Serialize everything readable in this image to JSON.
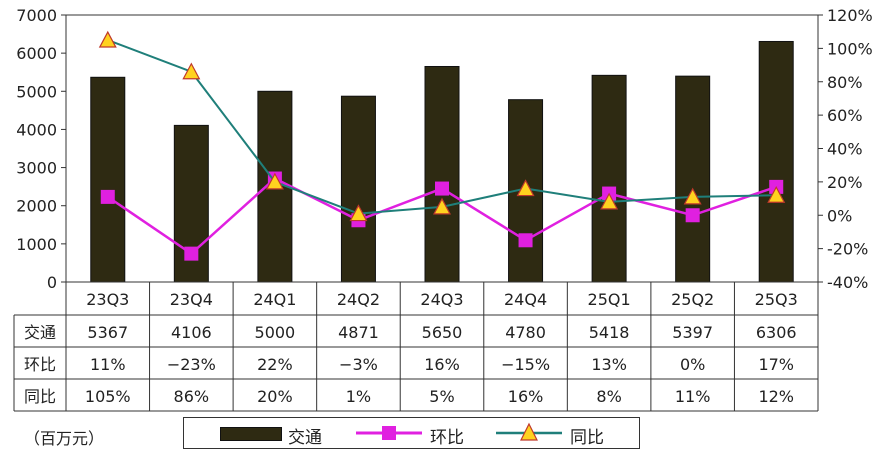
{
  "chart_data": {
    "type": "bar",
    "categories": [
      "23Q3",
      "23Q4",
      "24Q1",
      "24Q2",
      "24Q3",
      "24Q4",
      "25Q1",
      "25Q2",
      "25Q3"
    ],
    "series": [
      {
        "name": "交通",
        "kind": "bar",
        "axis": "left",
        "values": [
          5367,
          4106,
          5000,
          4871,
          5650,
          4780,
          5418,
          5397,
          6306
        ],
        "labels": [
          "5367",
          "4106",
          "5000",
          "4871",
          "5650",
          "4780",
          "5418",
          "5397",
          "6306"
        ],
        "color": "#2e2a12"
      },
      {
        "name": "环比",
        "kind": "line",
        "axis": "right",
        "values": [
          11,
          -23,
          22,
          -3,
          16,
          -15,
          13,
          0,
          17
        ],
        "labels": [
          "11%",
          "−23%",
          "22%",
          "−3%",
          "16%",
          "−15%",
          "13%",
          "0%",
          "17%"
        ],
        "color": "#e020e0"
      },
      {
        "name": "同比",
        "kind": "line",
        "axis": "right",
        "values": [
          105,
          86,
          20,
          1,
          5,
          16,
          8,
          11,
          12
        ],
        "labels": [
          "105%",
          "86%",
          "20%",
          "1%",
          "5%",
          "16%",
          "8%",
          "11%",
          "12%"
        ],
        "color": "#1f7f7a"
      }
    ],
    "yleft": {
      "ticks": [
        "0",
        "1000",
        "2000",
        "3000",
        "4000",
        "5000",
        "6000",
        "7000"
      ],
      "ylim": [
        0,
        7000
      ]
    },
    "yright": {
      "ticks": [
        "-40%",
        "-20%",
        "0%",
        "20%",
        "40%",
        "60%",
        "80%",
        "100%",
        "120%"
      ],
      "ylim": [
        -40,
        120
      ]
    },
    "grid": false,
    "legend_position": "bottom",
    "unit_label": "（百万元）"
  }
}
